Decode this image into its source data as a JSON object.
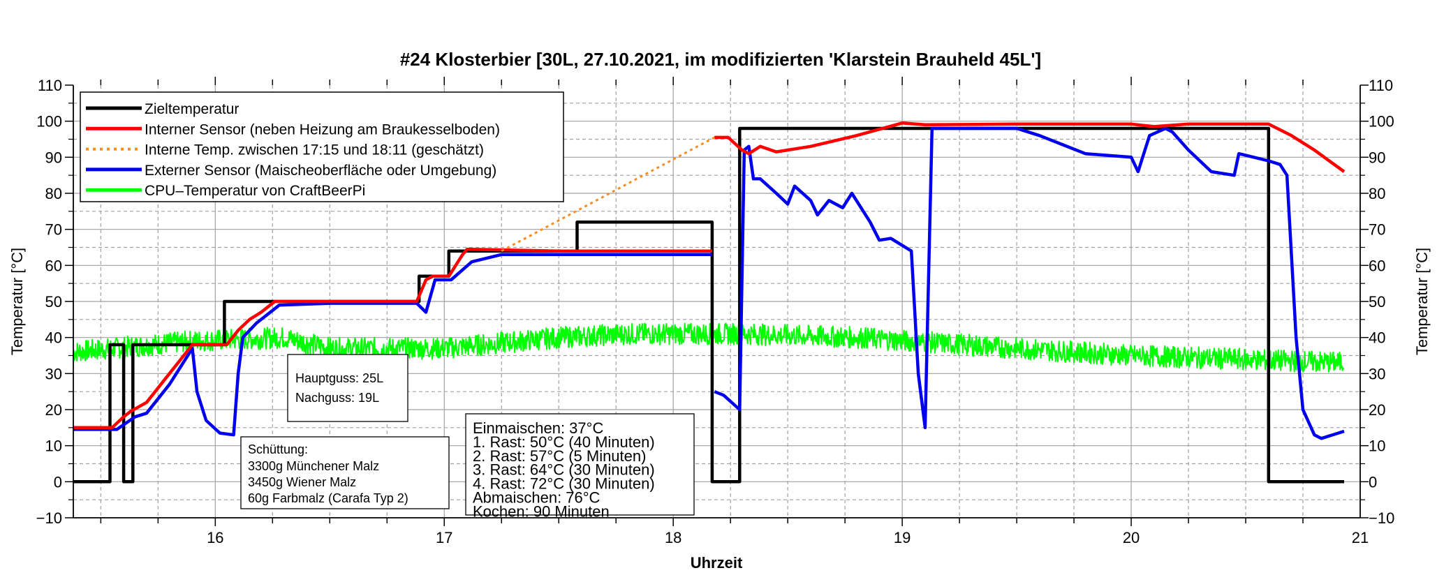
{
  "chart_data": {
    "type": "line",
    "title": "#24 Klosterbier [30L, 27.10.2021, im modifizierten 'Klarstein Brauheld 45L']",
    "xlabel": "Uhrzeit",
    "ylabel": "Temperatur [°C]",
    "ylabel_right": "Temperatur [°C]",
    "xlim": [
      15.38,
      21
    ],
    "ylim": [
      -10,
      110
    ],
    "xticks": [
      16,
      17,
      18,
      19,
      20,
      21
    ],
    "xtick_labels": [
      "16",
      "17",
      "18",
      "19",
      "20",
      "21"
    ],
    "yticks": [
      -10,
      0,
      10,
      20,
      30,
      40,
      50,
      60,
      70,
      80,
      90,
      100,
      110
    ],
    "ytick_labels": [
      "−10",
      "0",
      "10",
      "20",
      "30",
      "40",
      "50",
      "60",
      "70",
      "80",
      "90",
      "100",
      "110"
    ],
    "grid": true,
    "legend_position": "top-left",
    "series": [
      {
        "name": "Zieltemperatur",
        "color": "#000000",
        "style": "solid",
        "points": [
          [
            15.38,
            0
          ],
          [
            15.54,
            0
          ],
          [
            15.54,
            38
          ],
          [
            15.6,
            38
          ],
          [
            15.6,
            0
          ],
          [
            15.64,
            0
          ],
          [
            15.64,
            38
          ],
          [
            16.04,
            38
          ],
          [
            16.04,
            50
          ],
          [
            16.89,
            50
          ],
          [
            16.89,
            57
          ],
          [
            17.02,
            57
          ],
          [
            17.02,
            64
          ],
          [
            17.58,
            64
          ],
          [
            17.58,
            72
          ],
          [
            18.17,
            72
          ],
          [
            18.17,
            0
          ],
          [
            18.29,
            0
          ],
          [
            18.29,
            98
          ],
          [
            20.6,
            98
          ],
          [
            20.6,
            0
          ],
          [
            20.93,
            0
          ]
        ]
      },
      {
        "name": "Interner Sensor (neben Heizung am Braukesselboden)",
        "color": "#ff0000",
        "style": "solid",
        "points": [
          [
            15.38,
            15
          ],
          [
            15.55,
            15
          ],
          [
            15.6,
            18
          ],
          [
            15.63,
            19.5
          ],
          [
            15.7,
            22
          ],
          [
            15.8,
            30
          ],
          [
            15.9,
            38
          ],
          [
            16.05,
            38
          ],
          [
            16.1,
            42
          ],
          [
            16.15,
            45
          ],
          [
            16.2,
            47
          ],
          [
            16.26,
            50
          ],
          [
            16.5,
            50
          ],
          [
            16.88,
            50
          ],
          [
            16.92,
            56
          ],
          [
            16.95,
            57
          ],
          [
            17.02,
            57
          ],
          [
            17.08,
            63
          ],
          [
            17.1,
            64.5
          ],
          [
            17.5,
            64
          ],
          [
            18.17,
            64
          ]
        ]
      },
      {
        "name": "Interne Temp. zwischen 17:15 und 18:11 (geschätzt)",
        "color": "#ff8c1a",
        "style": "dotted",
        "points": [
          [
            17.25,
            64
          ],
          [
            18.18,
            95.5
          ]
        ]
      },
      {
        "name": "Interner Sensor (neben Heizung am Braukesselboden)",
        "legend": false,
        "color": "#ff0000",
        "style": "solid",
        "points": [
          [
            18.18,
            95.5
          ],
          [
            18.24,
            95.5
          ],
          [
            18.3,
            92
          ],
          [
            18.33,
            91
          ],
          [
            18.38,
            93
          ],
          [
            18.45,
            91.5
          ],
          [
            18.6,
            93
          ],
          [
            18.8,
            96
          ],
          [
            19.0,
            99.5
          ],
          [
            19.1,
            99
          ],
          [
            19.5,
            99.2
          ],
          [
            20.0,
            99.2
          ],
          [
            20.1,
            98.5
          ],
          [
            20.25,
            99.2
          ],
          [
            20.6,
            99.2
          ],
          [
            20.7,
            96
          ],
          [
            20.8,
            92
          ],
          [
            20.93,
            86
          ]
        ]
      },
      {
        "name": "Externer Sensor (Maischeoberfläche oder Umgebung)",
        "color": "#0000ee",
        "style": "solid",
        "points": [
          [
            15.38,
            14.5
          ],
          [
            15.57,
            14.5
          ],
          [
            15.65,
            18
          ],
          [
            15.7,
            19
          ],
          [
            15.8,
            27
          ],
          [
            15.9,
            37
          ],
          [
            15.92,
            25
          ],
          [
            15.96,
            17
          ],
          [
            16.02,
            13.5
          ],
          [
            16.08,
            13
          ],
          [
            16.1,
            30
          ],
          [
            16.12,
            40
          ],
          [
            16.18,
            44
          ],
          [
            16.28,
            49
          ],
          [
            16.5,
            49.5
          ],
          [
            16.88,
            49.5
          ],
          [
            16.92,
            47
          ],
          [
            16.96,
            56
          ],
          [
            17.03,
            56
          ],
          [
            17.12,
            61
          ],
          [
            17.25,
            63
          ],
          [
            18.17,
            63
          ]
        ]
      },
      {
        "name": "Externer Sensor (Maischeoberfläche oder Umgebung)",
        "legend": false,
        "color": "#0000ee",
        "style": "solid",
        "points": [
          [
            18.18,
            25
          ],
          [
            18.22,
            24
          ],
          [
            18.29,
            20
          ],
          [
            18.31,
            92
          ],
          [
            18.33,
            93
          ],
          [
            18.35,
            84
          ],
          [
            18.38,
            84
          ],
          [
            18.45,
            80
          ],
          [
            18.5,
            77
          ],
          [
            18.53,
            82
          ],
          [
            18.6,
            78
          ],
          [
            18.63,
            74
          ],
          [
            18.68,
            78
          ],
          [
            18.74,
            76
          ],
          [
            18.78,
            80
          ],
          [
            18.86,
            72
          ],
          [
            18.9,
            67
          ],
          [
            18.95,
            67.5
          ],
          [
            19.04,
            64
          ],
          [
            19.07,
            30
          ],
          [
            19.1,
            15
          ],
          [
            19.13,
            98
          ],
          [
            19.5,
            98
          ],
          [
            19.6,
            96
          ],
          [
            19.8,
            91
          ],
          [
            20.0,
            90
          ],
          [
            20.03,
            86
          ],
          [
            20.08,
            96
          ],
          [
            20.15,
            98
          ],
          [
            20.18,
            97
          ],
          [
            20.25,
            92
          ],
          [
            20.35,
            86
          ],
          [
            20.45,
            85
          ],
          [
            20.47,
            91
          ],
          [
            20.6,
            89
          ],
          [
            20.65,
            88
          ],
          [
            20.68,
            85
          ],
          [
            20.72,
            40
          ],
          [
            20.75,
            20
          ],
          [
            20.8,
            13
          ],
          [
            20.83,
            12
          ],
          [
            20.93,
            14
          ]
        ]
      },
      {
        "name": "CPU–Temperatur von CraftBeerPi",
        "color": "#00ff00",
        "style": "noisy",
        "noise_amplitude": 3,
        "points": [
          [
            15.38,
            36
          ],
          [
            15.9,
            39
          ],
          [
            16.3,
            40
          ],
          [
            16.5,
            37
          ],
          [
            17.0,
            37
          ],
          [
            17.5,
            40
          ],
          [
            17.8,
            41
          ],
          [
            18.3,
            41
          ],
          [
            18.8,
            40
          ],
          [
            19.5,
            37
          ],
          [
            20.0,
            35
          ],
          [
            20.93,
            33
          ]
        ]
      }
    ],
    "legend": [
      {
        "label": "Zieltemperatur",
        "color": "#000000",
        "style": "solid"
      },
      {
        "label": "Interner Sensor (neben Heizung am Braukesselboden)",
        "color": "#ff0000",
        "style": "solid"
      },
      {
        "label": "Interne Temp. zwischen 17:15 und 18:11 (geschätzt)",
        "color": "#ff8c1a",
        "style": "dotted"
      },
      {
        "label": "Externer Sensor (Maischeoberfläche oder Umgebung)",
        "color": "#0000ee",
        "style": "solid"
      },
      {
        "label": "CPU–Temperatur von CraftBeerPi",
        "color": "#00ff00",
        "style": "solid"
      }
    ],
    "annotations": {
      "water": [
        "Hauptguss: 25L",
        "Nachguss: 19L"
      ],
      "grain": [
        "Schüttung:",
        "3300g Münchener Malz",
        "3450g Wiener Malz",
        "60g Farbmalz (Carafa Typ 2)"
      ],
      "steps": [
        "Einmaischen: 37°C",
        "1. Rast: 50°C (40 Minuten)",
        "2. Rast: 57°C (5 Minuten)",
        "3. Rast: 64°C (30 Minuten)",
        "4. Rast: 72°C (30 Minuten)",
        "Abmaischen: 76°C",
        "Kochen: 90 Minuten"
      ]
    }
  }
}
